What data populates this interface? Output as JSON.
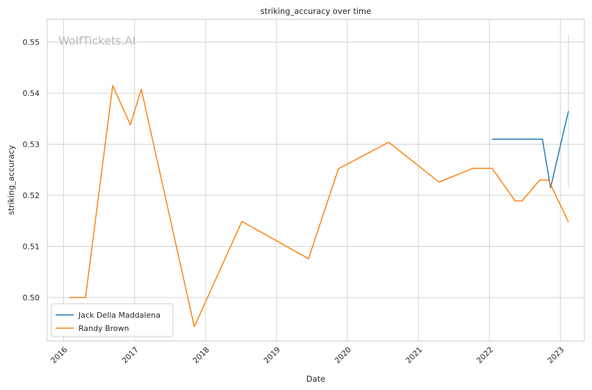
{
  "chart_data": {
    "type": "line",
    "title": "striking_accuracy over time",
    "xlabel": "Date",
    "ylabel": "striking_accuracy",
    "watermark": "WolfTickets.AI",
    "xlim": [
      "2015-10-09",
      "2023-05-05"
    ],
    "ylim": [
      0.4915,
      0.5545
    ],
    "x_ticks": [
      "2016",
      "2017",
      "2018",
      "2019",
      "2020",
      "2021",
      "2022",
      "2023"
    ],
    "y_ticks": [
      "0.50",
      "0.51",
      "0.52",
      "0.53",
      "0.54",
      "0.55"
    ],
    "grid": true,
    "legend_position": "lower-left",
    "series": [
      {
        "name": "Jack Della Maddalena",
        "color": "#1f77b4",
        "points": [
          {
            "x": "2022-01-15",
            "y": 0.531
          },
          {
            "x": "2022-10-01",
            "y": 0.531
          },
          {
            "x": "2022-11-12",
            "y": 0.5215
          },
          {
            "x": "2023-02-12",
            "y": 0.5365
          }
        ],
        "confidence_band": {
          "x": "2023-02-12",
          "low": 0.5215,
          "high": 0.5515
        }
      },
      {
        "name": "Randy Brown",
        "color": "#ff7f0e",
        "points": [
          {
            "x": "2016-01-30",
            "y": 0.5
          },
          {
            "x": "2016-04-23",
            "y": 0.5
          },
          {
            "x": "2016-09-10",
            "y": 0.5415
          },
          {
            "x": "2016-12-10",
            "y": 0.5338
          },
          {
            "x": "2017-02-04",
            "y": 0.5408
          },
          {
            "x": "2017-11-04",
            "y": 0.4943
          },
          {
            "x": "2018-07-07",
            "y": 0.5149
          },
          {
            "x": "2019-06-15",
            "y": 0.5076
          },
          {
            "x": "2019-11-16",
            "y": 0.5252
          },
          {
            "x": "2020-08-01",
            "y": 0.5304
          },
          {
            "x": "2021-04-17",
            "y": 0.5226
          },
          {
            "x": "2021-10-09",
            "y": 0.5253
          },
          {
            "x": "2022-01-15",
            "y": 0.5253
          },
          {
            "x": "2022-05-14",
            "y": 0.5189
          },
          {
            "x": "2022-06-18",
            "y": 0.5189
          },
          {
            "x": "2022-09-17",
            "y": 0.523
          },
          {
            "x": "2022-11-01",
            "y": 0.523
          },
          {
            "x": "2023-02-12",
            "y": 0.5148
          }
        ]
      }
    ]
  }
}
